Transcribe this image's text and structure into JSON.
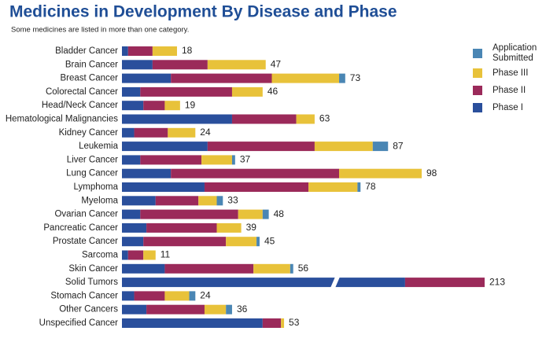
{
  "chart_data": {
    "type": "stacked-bar-horizontal",
    "title": "Medicines in Development By Disease and Phase",
    "subtitle": "Some medicines are listed in more than one category.",
    "categories": [
      "Bladder Cancer",
      "Brain Cancer",
      "Breast Cancer",
      "Colorectal Cancer",
      "Head/Neck Cancer",
      "Hematological Malignancies",
      "Kidney Cancer",
      "Leukemia",
      "Liver Cancer",
      "Lung Cancer",
      "Lymphoma",
      "Myeloma",
      "Ovarian Cancer",
      "Pancreatic Cancer",
      "Prostate Cancer",
      "Sarcoma",
      "Skin Cancer",
      "Solid Tumors",
      "Stomach Cancer",
      "Other Cancers",
      "Unspecified Cancer"
    ],
    "series": [
      {
        "name": "Phase I",
        "color": "#2a4f9c",
        "values": [
          2,
          10,
          16,
          6,
          7,
          36,
          4,
          28,
          6,
          16,
          27,
          11,
          6,
          8,
          7,
          2,
          14,
          187,
          4,
          8,
          46
        ]
      },
      {
        "name": "Phase II",
        "color": "#9b2a5a",
        "values": [
          8,
          18,
          33,
          30,
          7,
          21,
          11,
          35,
          20,
          55,
          34,
          14,
          32,
          23,
          27,
          5,
          29,
          26,
          10,
          19,
          6
        ]
      },
      {
        "name": "Phase III",
        "color": "#e8c23a",
        "values": [
          8,
          19,
          22,
          10,
          5,
          6,
          9,
          19,
          10,
          27,
          16,
          6,
          8,
          8,
          10,
          4,
          12,
          0,
          8,
          7,
          1
        ]
      },
      {
        "name": "Application Submitted",
        "color": "#4a86b4",
        "values": [
          0,
          0,
          2,
          0,
          0,
          0,
          0,
          5,
          1,
          0,
          1,
          2,
          2,
          0,
          1,
          0,
          1,
          0,
          2,
          2,
          0
        ]
      }
    ],
    "totals": [
      18,
      47,
      73,
      46,
      19,
      63,
      24,
      87,
      37,
      98,
      78,
      33,
      48,
      39,
      45,
      11,
      56,
      213,
      24,
      36,
      53
    ]
  }
}
